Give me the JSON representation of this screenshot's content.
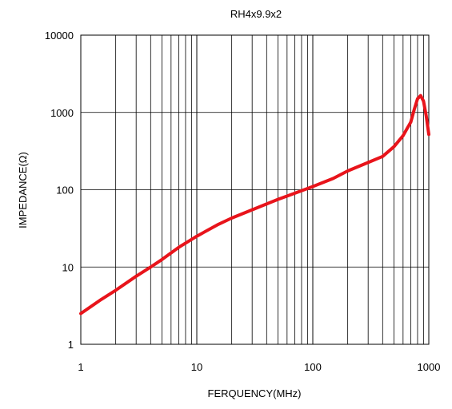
{
  "chart_data": {
    "type": "line",
    "title": "RH4x9.9x2",
    "xlabel": "FERQUENCY(MHz)",
    "ylabel": "IMPEDANCE(Ω)",
    "x_scale": "log",
    "y_scale": "log",
    "xlim": [
      1,
      1000
    ],
    "ylim": [
      1,
      10000
    ],
    "grid": true,
    "x_ticks": [
      "1",
      "10",
      "100",
      "1000"
    ],
    "y_ticks": [
      "1",
      "10",
      "100",
      "1000",
      "10000"
    ],
    "line_color": "#e8141b",
    "series": [
      {
        "x": [
          1,
          1.5,
          2,
          3,
          4,
          5,
          7,
          10,
          15,
          20,
          30,
          50,
          70,
          100,
          150,
          200,
          300,
          400,
          500,
          600,
          700,
          750,
          800,
          850,
          900,
          950,
          1000
        ],
        "y": [
          2.5,
          3.8,
          5,
          7.6,
          10,
          12.5,
          18,
          25,
          35,
          43,
          55,
          75,
          90,
          110,
          140,
          175,
          225,
          270,
          360,
          500,
          750,
          1100,
          1500,
          1650,
          1400,
          900,
          520
        ]
      }
    ]
  }
}
